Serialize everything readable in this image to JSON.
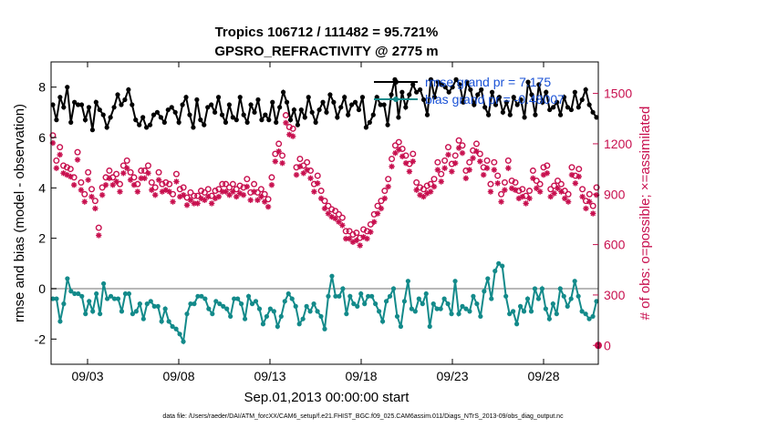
{
  "chart_data": {
    "type": "line",
    "title": "Tropics 106712 / 111482 = 95.721%",
    "subtitle": "GPSRO_REFRACTIVITY @ 2775 m",
    "xlabel": "Sep.01,2013 00:00:00 start",
    "ylabel": "rmse and bias (model - observation)",
    "ylabel_right": "# of obs: o=possible; ×=assimilated",
    "footnote": "data file: /Users/raeder/DAI/ATM_forcXX/CAM6_setup/f.e21.FHIST_BGC.f09_025.CAM6assim.011/Diags_NTrS_2013-09/obs_diag_output.nc",
    "xlim": [
      1.0,
      31.0
    ],
    "ylim": [
      -3,
      9
    ],
    "ylim_right": [
      -112.5,
      1687.5
    ],
    "xticks": [
      3,
      8,
      13,
      18,
      23,
      28
    ],
    "xtick_labels": [
      "09/03",
      "09/08",
      "09/13",
      "09/18",
      "09/23",
      "09/28"
    ],
    "yticks": [
      -2,
      0,
      2,
      4,
      6,
      8
    ],
    "yticks_right": [
      0,
      300,
      600,
      900,
      1200,
      1500
    ],
    "legend": [
      {
        "label": "rmse grand pr = 7.175",
        "color": "#000000"
      },
      {
        "label": "bias grand pr = -0.48007",
        "color": "#138a8a"
      }
    ],
    "colors": {
      "rmse": "#000000",
      "bias": "#138a8a",
      "obs": "#c8104f",
      "zero_line": "#b8b8b8"
    },
    "series": [
      {
        "name": "rmse",
        "axis": "left",
        "values": [
          7.3,
          6.7,
          7.6,
          7.2,
          8.0,
          6.6,
          7.4,
          7.3,
          7.3,
          6.7,
          7.2,
          6.3,
          7.4,
          7.1,
          6.9,
          6.4,
          6.8,
          7.2,
          7.7,
          7.3,
          7.5,
          7.9,
          7.3,
          6.7,
          6.5,
          6.8,
          6.4,
          6.5,
          6.9,
          7.0,
          6.8,
          6.6,
          7.1,
          7.2,
          7.0,
          6.6,
          7.3,
          7.6,
          6.9,
          6.4,
          7.5,
          6.7,
          6.5,
          7.2,
          7.3,
          7.0,
          7.6,
          6.9,
          6.6,
          7.3,
          6.8,
          6.7,
          7.6,
          6.9,
          6.6,
          7.3,
          7.0,
          7.5,
          6.7,
          6.9,
          6.7,
          7.4,
          6.6,
          7.2,
          7.8,
          7.4,
          6.7,
          7.1,
          6.5,
          7.1,
          6.8,
          7.6,
          7.0,
          6.6,
          7.1,
          7.4,
          7.0,
          7.7,
          7.4,
          6.8,
          7.2,
          7.6,
          6.9,
          7.3,
          7.4,
          7.1,
          7.6,
          6.4,
          6.6,
          6.9,
          7.6,
          7.3,
          7.3,
          6.5,
          7.7,
          8.3,
          6.8,
          7.8,
          7.2,
          7.7,
          8.1,
          7.8,
          7.9,
          7.5,
          6.9,
          8.3,
          7.6,
          8.2,
          8.1,
          8.0,
          7.8,
          8.0,
          8.3,
          8.1,
          7.4,
          8.2,
          7.9,
          7.3,
          7.7,
          7.9,
          7.2,
          6.9,
          7.8,
          7.3,
          7.6,
          7.0,
          7.4,
          6.9,
          7.6,
          7.3,
          7.5,
          6.8,
          8.2,
          7.7,
          6.9,
          8.1,
          7.4,
          7.8,
          7.1,
          7.2,
          7.4,
          6.9,
          7.6,
          7.2,
          7.1,
          7.8,
          7.2,
          7.5,
          7.9,
          7.3,
          7.0,
          6.8
        ]
      },
      {
        "name": "bias",
        "axis": "left",
        "values": [
          -0.4,
          -0.4,
          -1.3,
          -0.6,
          0.4,
          -0.1,
          -0.2,
          -0.2,
          -0.3,
          -1.0,
          -0.5,
          -0.9,
          -0.2,
          -1.0,
          0.2,
          -0.4,
          -0.3,
          -0.4,
          -0.4,
          -0.9,
          -0.2,
          -0.2,
          -1.0,
          -0.9,
          -0.6,
          -1.2,
          -0.6,
          -0.5,
          -0.7,
          -0.7,
          -1.3,
          -0.8,
          -1.3,
          -1.5,
          -1.6,
          -1.8,
          -2.1,
          -1.0,
          -0.6,
          -0.6,
          -0.3,
          -0.3,
          -0.4,
          -0.8,
          -1.0,
          -0.5,
          -0.6,
          -0.7,
          -0.8,
          -1.1,
          -0.4,
          -0.4,
          -0.6,
          -1.2,
          -0.3,
          -0.6,
          -0.5,
          -0.8,
          -1.4,
          -1.1,
          -0.8,
          -0.9,
          -1.5,
          -1.1,
          -0.5,
          -0.2,
          -0.4,
          -0.7,
          -1.4,
          -1.2,
          -0.7,
          -0.9,
          -0.6,
          -0.9,
          -1.1,
          -1.6,
          -0.3,
          0.5,
          -0.3,
          -0.3,
          0.0,
          -1.0,
          -0.3,
          -0.6,
          -0.7,
          -0.2,
          -0.6,
          -0.3,
          -0.3,
          -0.6,
          -0.9,
          -1.3,
          -0.5,
          -0.3,
          0.0,
          -1.1,
          -1.5,
          -0.5,
          0.3,
          -0.8,
          -0.9,
          -0.4,
          -0.6,
          -0.2,
          -1.5,
          -0.6,
          -0.8,
          -0.8,
          -0.4,
          -0.6,
          -1.0,
          0.3,
          -1.0,
          -0.7,
          -0.8,
          -0.9,
          -0.3,
          -0.6,
          -1.1,
          -0.1,
          0.4,
          -0.4,
          0.7,
          1.0,
          0.9,
          -0.3,
          -1.0,
          -0.9,
          -1.4,
          -0.7,
          -0.9,
          -0.4,
          -0.9,
          0.0,
          -0.4,
          0.0,
          -0.8,
          -1.2,
          -0.6,
          -1.0,
          0.0,
          -0.3,
          -0.7,
          -0.4,
          0.3,
          -0.3,
          -0.9,
          -1.0,
          -1.2,
          -1.1,
          -0.5
        ]
      }
    ],
    "obs_possible": [
      1250,
      1100,
      1180,
      1070,
      1060,
      1050,
      1000,
      1150,
      970,
      900,
      1030,
      930,
      860,
      700,
      940,
      1000,
      1040,
      1000,
      1020,
      960,
      1070,
      1100,
      1030,
      1000,
      960,
      1040,
      1040,
      1070,
      970,
      940,
      1030,
      960,
      970,
      960,
      900,
      1020,
      930,
      940,
      880,
      910,
      890,
      890,
      920,
      910,
      930,
      890,
      920,
      930,
      960,
      960,
      940,
      960,
      930,
      950,
      940,
      990,
      910,
      960,
      910,
      930,
      900,
      870,
      1000,
      1140,
      1200,
      1130,
      1370,
      1300,
      1290,
      1060,
      1110,
      1070,
      1090,
      1040,
      960,
      1010,
      920,
      860,
      830,
      810,
      800,
      780,
      760,
      680,
      680,
      660,
      670,
      640,
      690,
      680,
      720,
      780,
      830,
      860,
      920,
      990,
      1110,
      1190,
      1210,
      1170,
      1130,
      1080,
      1140,
      970,
      940,
      930,
      950,
      960,
      990,
      1090,
      1020,
      1100,
      1180,
      1080,
      1130,
      1220,
      1190,
      1040,
      1090,
      1160,
      1200,
      1140,
      1060,
      1100,
      960,
      1090,
      1010,
      900,
      970,
      1100,
      980,
      970,
      920,
      930,
      890,
      920,
      1040,
      980,
      960,
      1060,
      1070,
      930,
      950,
      980,
      960,
      920,
      900,
      1060,
      1010,
      1050,
      930,
      860,
      900,
      830,
      940
    ]
  }
}
